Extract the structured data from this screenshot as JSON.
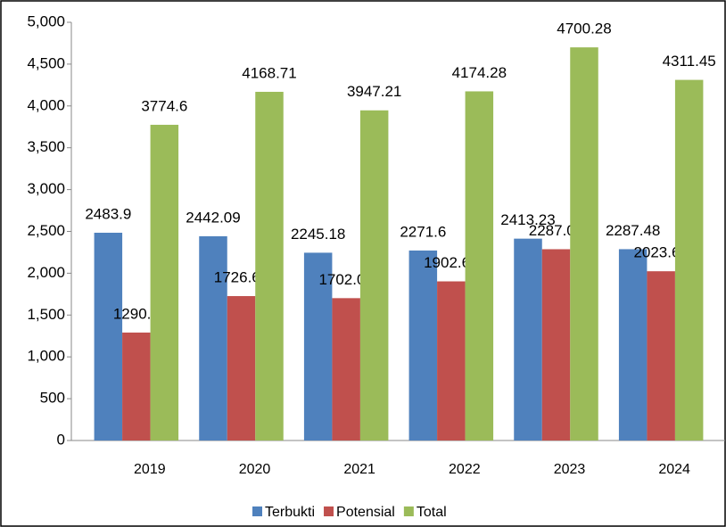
{
  "chart_data": {
    "type": "bar",
    "categories": [
      "2019",
      "2020",
      "2021",
      "2022",
      "2023",
      "2024"
    ],
    "series": [
      {
        "name": "Terbukti",
        "color": "#4f81bd",
        "values": [
          2483.9,
          2442.09,
          2245.18,
          2271.6,
          2413.23,
          2287.48
        ]
      },
      {
        "name": "Potensial",
        "color": "#c0504d",
        "values": [
          1290.6,
          1726.62,
          1702.03,
          1902.68,
          2287.06,
          2023.61
        ]
      },
      {
        "name": "Total",
        "color": "#9bbb59",
        "values": [
          3774.6,
          4168.71,
          3947.21,
          4174.28,
          4700.28,
          4311.45
        ]
      }
    ],
    "ylim": [
      0,
      5000
    ],
    "yticks": [
      0,
      500,
      {
        "value": 1000,
        "label": "1,000"
      },
      {
        "value": 1500,
        "label": "1,500"
      },
      {
        "value": 2000,
        "label": "2,000"
      },
      {
        "value": 2500,
        "label": "2,500"
      },
      {
        "value": 3000,
        "label": "3,000"
      },
      {
        "value": 3500,
        "label": "3,500"
      },
      {
        "value": 4000,
        "label": "4,000"
      },
      {
        "value": 4500,
        "label": "4,500"
      },
      {
        "value": 5000,
        "label": "5,000"
      }
    ],
    "legend": "bottom"
  }
}
